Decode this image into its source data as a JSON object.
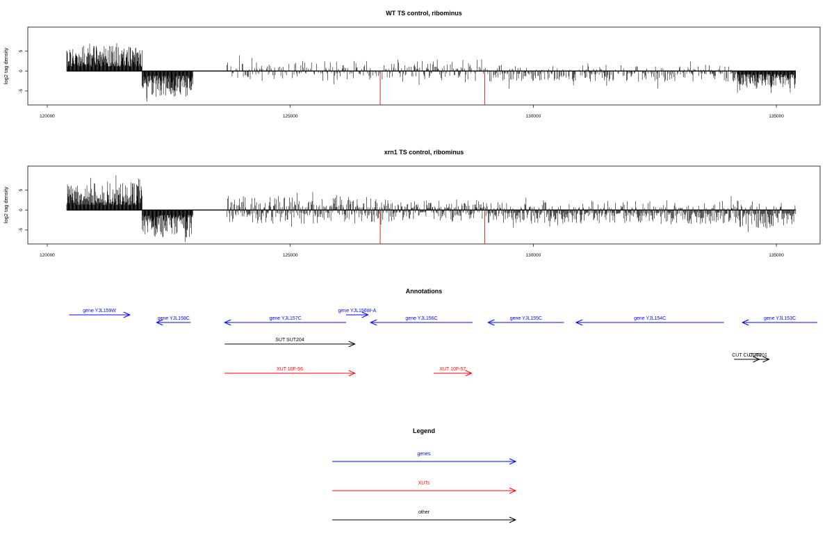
{
  "chart_data": [
    {
      "type": "bar",
      "title": "WT TS control, ribominus",
      "ylabel": "log2 tag density",
      "xlim": [
        119600,
        135900
      ],
      "ylim": [
        -8.5,
        11
      ],
      "xticks": [
        120000,
        125000,
        130000,
        135000
      ],
      "yticks": [
        -5,
        0,
        5
      ],
      "xtick_labels": [
        "120000",
        "125000",
        "130000",
        "135000"
      ],
      "ytick_labels": [
        "-5",
        "0",
        "5"
      ],
      "grid": false,
      "bar_color": "#000000",
      "zero_line_from": 120400,
      "zero_line_to": 135400,
      "segments": [
        {
          "from": 120400,
          "to": 121950,
          "direction": "up",
          "typical": 3.3,
          "max": 7.0
        },
        {
          "from": 121950,
          "to": 123000,
          "direction": "down",
          "typical": 3.4,
          "max": 8.0
        },
        {
          "from": 123700,
          "to": 126800,
          "direction": "mixed",
          "typical": 1.3,
          "max": 4.0
        },
        {
          "from": 126800,
          "to": 129000,
          "direction": "mixed",
          "typical": 1.5,
          "max": 4.0
        },
        {
          "from": 129000,
          "to": 134200,
          "direction": "down-mostly",
          "typical": 1.4,
          "max": 5.0
        },
        {
          "from": 134200,
          "to": 135400,
          "direction": "down",
          "typical": 2.3,
          "max": 5.5
        }
      ],
      "highlight_lines": [
        {
          "x": 126850,
          "y": -8.5,
          "color": "#d62728"
        },
        {
          "x": 129000,
          "y": -8.5,
          "color": "#d62728"
        }
      ]
    },
    {
      "type": "bar",
      "title": "xrn1 TS control, ribominus",
      "ylabel": "log2 tag density",
      "xlim": [
        119600,
        135900
      ],
      "ylim": [
        -8.5,
        11
      ],
      "xticks": [
        120000,
        125000,
        130000,
        135000
      ],
      "yticks": [
        -5,
        0,
        5
      ],
      "xtick_labels": [
        "120000",
        "125000",
        "130000",
        "135000"
      ],
      "ytick_labels": [
        "-5",
        "0",
        "5"
      ],
      "grid": false,
      "bar_color": "#000000",
      "zero_line_from": 120400,
      "zero_line_to": 135400,
      "segments": [
        {
          "from": 120400,
          "to": 121950,
          "direction": "up",
          "typical": 3.6,
          "max": 8.7
        },
        {
          "from": 121950,
          "to": 123000,
          "direction": "down",
          "typical": 3.6,
          "max": 8.0
        },
        {
          "from": 123700,
          "to": 126800,
          "direction": "both",
          "typical": 1.8,
          "max": 4.5
        },
        {
          "from": 126800,
          "to": 129000,
          "direction": "both",
          "typical": 1.5,
          "max": 4.0
        },
        {
          "from": 129000,
          "to": 134200,
          "direction": "both-down",
          "typical": 1.8,
          "max": 5.0
        },
        {
          "from": 134200,
          "to": 135400,
          "direction": "both-down",
          "typical": 2.3,
          "max": 5.5
        }
      ],
      "highlight_lines": [
        {
          "x": 126850,
          "y": -8.5,
          "color": "#d62728"
        },
        {
          "x": 129000,
          "y": -8.5,
          "color": "#d62728"
        }
      ]
    },
    {
      "type": "annotation-track",
      "title": "Annotations",
      "xlim": [
        119600,
        135900
      ],
      "colors": {
        "gene": "#0000ff",
        "xut": "#ff0000",
        "other": "#000000"
      },
      "features": [
        {
          "label": "gene YJL159W",
          "start": 120450,
          "end": 121700,
          "strand": "+",
          "kind": "gene",
          "row": 0
        },
        {
          "label": "gene YJL158C",
          "start": 122250,
          "end": 122950,
          "strand": "-",
          "kind": "gene",
          "row": 1
        },
        {
          "label": "gene YJL157C",
          "start": 123650,
          "end": 126150,
          "strand": "-",
          "kind": "gene",
          "row": 1
        },
        {
          "label": "gene YJL156W-A",
          "start": 126150,
          "end": 126600,
          "strand": "+",
          "kind": "gene",
          "row": 0
        },
        {
          "label": "gene YJL156C",
          "start": 126650,
          "end": 128750,
          "strand": "-",
          "kind": "gene",
          "row": 1
        },
        {
          "label": "gene YJL155C",
          "start": 129070,
          "end": 130630,
          "strand": "-",
          "kind": "gene",
          "row": 1
        },
        {
          "label": "gene YJL154C",
          "start": 130880,
          "end": 133920,
          "strand": "-",
          "kind": "gene",
          "row": 1
        },
        {
          "label": "gene YJL153C",
          "start": 134300,
          "end": 135900,
          "strand": "-",
          "kind": "gene",
          "row": 1
        },
        {
          "label": "SUT SUT204",
          "start": 123650,
          "end": 126330,
          "strand": "+",
          "kind": "other",
          "row": 2
        },
        {
          "label": "CUT CUT200",
          "start": 134130,
          "end": 134650,
          "strand": "+",
          "kind": "other",
          "row": 3
        },
        {
          "label": "CUT201",
          "start": 134400,
          "end": 134850,
          "strand": "+",
          "kind": "other",
          "row": 3
        },
        {
          "label": "XUT 10F-56",
          "start": 123650,
          "end": 126330,
          "strand": "+",
          "kind": "xut",
          "row": 4
        },
        {
          "label": "XUT 10F-57",
          "start": 127950,
          "end": 128730,
          "strand": "+",
          "kind": "xut",
          "row": 4
        }
      ]
    },
    {
      "type": "legend",
      "title": "Legend",
      "items": [
        {
          "label": "genes",
          "color": "#0000ff"
        },
        {
          "label": "XUTs",
          "color": "#ff0000"
        },
        {
          "label": "other",
          "color": "#000000"
        }
      ]
    }
  ]
}
